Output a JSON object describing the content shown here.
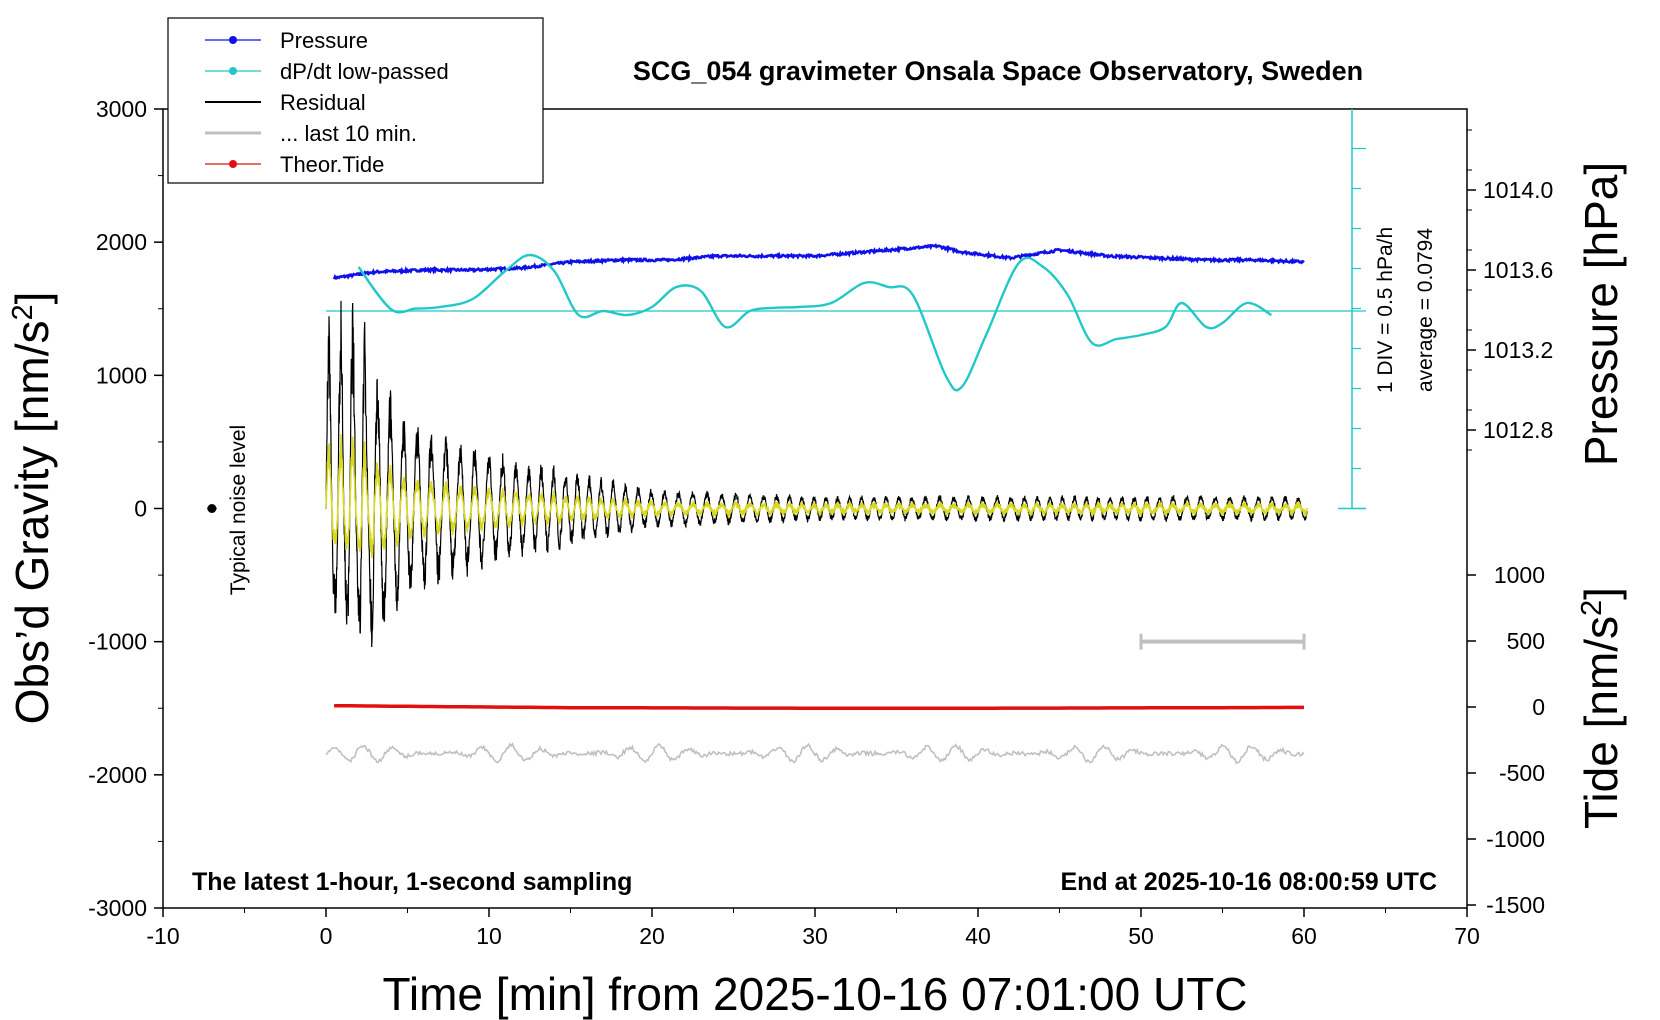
{
  "chart_data": {
    "type": "line",
    "title": "SCG_054 gravimeter Onsala Space Observatory, Sweden",
    "xlabel": "Time [min] from 2025-10-16 07:01:00 UTC",
    "ylabel_left": "Obs’d Gravity [nm/s",
    "ylabel_right_pressure": "Pressure [hPa]",
    "ylabel_right_tide": "Tide [nm/s",
    "unit_superscript": "2",
    "unit_close": "]",
    "xlim": [
      -10,
      70
    ],
    "xticks": [
      "-10",
      "0",
      "10",
      "20",
      "30",
      "40",
      "50",
      "60",
      "70"
    ],
    "ylim_gravity": [
      -3000,
      3000
    ],
    "yticks_gravity": [
      "3000",
      "2000",
      "1000",
      "0",
      "-1000",
      "-2000",
      "-3000"
    ],
    "pressure_ticks": [
      "1014.0",
      "1013.6",
      "1013.2",
      "1012.8"
    ],
    "tide_ticks": [
      "1000",
      "500",
      "0",
      "-500",
      "-1000",
      "-1500"
    ],
    "annotation_bottom_left": "The latest 1-hour, 1-second sampling",
    "annotation_bottom_right": "End at 2025-10-16 08:00:59 UTC",
    "noise_label": "Typical noise level",
    "dpdt_scale_label": "1 DIV = 0.5 hPa/h",
    "dpdt_average_label": "average = 0.0794",
    "legend": [
      "Pressure",
      "dP/dt low-passed",
      "Residual",
      "... last 10 min.",
      "Theor.Tide"
    ],
    "legend_placement": "top-left",
    "colors": {
      "pressure": "#1010e8",
      "dpdt": "#22c8c8",
      "residual": "#000000",
      "last10": "#c0c0c0",
      "tide": "#e01010",
      "yellow": "#d8d820"
    },
    "series": [
      {
        "name": "Pressure",
        "x": [
          0.5,
          3,
          6,
          9,
          12,
          15,
          18,
          21,
          24,
          27,
          30,
          33,
          36,
          37.5,
          39,
          42,
          45,
          48,
          51,
          54,
          57,
          60
        ],
        "values": [
          1013.56,
          1013.59,
          1013.6,
          1013.6,
          1013.61,
          1013.64,
          1013.65,
          1013.65,
          1013.67,
          1013.67,
          1013.67,
          1013.69,
          1013.71,
          1013.72,
          1013.69,
          1013.66,
          1013.7,
          1013.67,
          1013.66,
          1013.65,
          1013.65,
          1013.64
        ]
      },
      {
        "name": "dP/dt low-passed",
        "x": [
          2,
          4,
          5.5,
          7,
          9,
          11,
          12.5,
          14,
          15.5,
          17,
          18.5,
          20,
          21.5,
          23,
          24.5,
          26,
          27.5,
          29,
          31,
          33,
          34.5,
          36,
          38,
          39,
          40.5,
          42.5,
          44,
          45.5,
          47,
          48.5,
          50,
          51.5,
          52.5,
          54,
          55,
          56.5,
          58
        ],
        "values": [
          0.55,
          0.02,
          0.03,
          0.05,
          0.15,
          0.5,
          0.7,
          0.5,
          -0.05,
          0.0,
          -0.05,
          0.05,
          0.3,
          0.25,
          -0.2,
          0.0,
          0.04,
          0.05,
          0.1,
          0.35,
          0.3,
          0.2,
          -0.8,
          -0.95,
          -0.3,
          0.6,
          0.55,
          0.2,
          -0.4,
          -0.35,
          -0.3,
          -0.2,
          0.1,
          -0.2,
          -0.15,
          0.1,
          -0.05
        ]
      },
      {
        "name": "Residual",
        "x": [
          0,
          2,
          5,
          10,
          15,
          20,
          30,
          40,
          50,
          60
        ],
        "envelope": [
          1200,
          1300,
          700,
          450,
          300,
          150,
          100,
          100,
          100,
          100
        ]
      },
      {
        "name": "... last 10 min.",
        "x": [
          50,
          60
        ],
        "values": [
          -1000,
          -1000
        ]
      },
      {
        "name": "Theor.Tide",
        "x": [
          0.5,
          5,
          15,
          25,
          35,
          45,
          55,
          60
        ],
        "values": [
          10,
          5,
          -5,
          -8,
          -10,
          -8,
          -5,
          -3
        ]
      }
    ]
  }
}
